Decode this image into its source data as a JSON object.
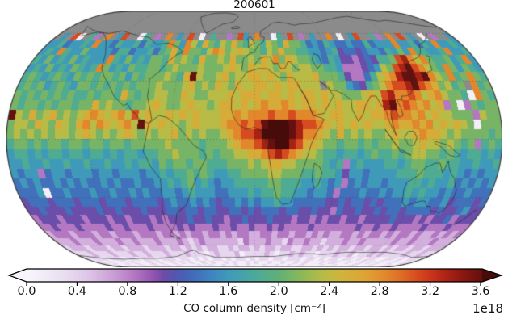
{
  "chart_data": {
    "type": "heatmap",
    "title": "200601",
    "projection": "eckert4",
    "colorbar": {
      "label": "CO column density [cm⁻²]",
      "scale_label": "1e18",
      "tick_labels": [
        "0.0",
        "0.4",
        "0.8",
        "1.2",
        "1.6",
        "2.0",
        "2.4",
        "2.8",
        "3.2",
        "3.6"
      ],
      "tick_values": [
        0.0,
        0.4,
        0.8,
        1.2,
        1.6,
        2.0,
        2.4,
        2.8,
        3.2,
        3.6
      ],
      "min": 0.0,
      "max": 3.6,
      "extend": "both"
    },
    "colormap": [
      {
        "v": 0.0,
        "c": "#f8f6fc"
      },
      {
        "v": 0.3,
        "c": "#e9def1"
      },
      {
        "v": 0.5,
        "c": "#ddc3e6"
      },
      {
        "v": 0.7,
        "c": "#c89bd3"
      },
      {
        "v": 0.85,
        "c": "#b478c2"
      },
      {
        "v": 1.0,
        "c": "#9355b1"
      },
      {
        "v": 1.08,
        "c": "#714ba9"
      },
      {
        "v": 1.18,
        "c": "#5356b0"
      },
      {
        "v": 1.3,
        "c": "#4269b8"
      },
      {
        "v": 1.45,
        "c": "#3f82c0"
      },
      {
        "v": 1.6,
        "c": "#3f9aba"
      },
      {
        "v": 1.8,
        "c": "#4aa99b"
      },
      {
        "v": 2.0,
        "c": "#60b076"
      },
      {
        "v": 2.2,
        "c": "#90b955"
      },
      {
        "v": 2.35,
        "c": "#b8bb46"
      },
      {
        "v": 2.5,
        "c": "#d0b43c"
      },
      {
        "v": 2.7,
        "c": "#dfa133"
      },
      {
        "v": 2.85,
        "c": "#e2872b"
      },
      {
        "v": 3.0,
        "c": "#dd6423"
      },
      {
        "v": 3.15,
        "c": "#d23e1d"
      },
      {
        "v": 3.3,
        "c": "#b42517"
      },
      {
        "v": 3.45,
        "c": "#8c1710"
      },
      {
        "v": 3.6,
        "c": "#651110"
      },
      {
        "v": 3.75,
        "c": "#470c09"
      }
    ],
    "no_data_color": "#8b8b8b",
    "grid": {
      "lat_start": 90,
      "lat_step": -5,
      "lon_start": -180,
      "lon_step": 5,
      "encoding": "each char: index in '0123456789abcdef' times 0.25 = CO column density in 1e18 cm^-2; '.' = no data (gray)",
      "rows": [
        "........................................................................",
        "........................................................................",
        "........................................................................",
        "........................................................................",
        "........................................................................",
        "........................................................................",
        ".6.c0.73.b.6c..07.3.b.6.c.0.7..3.c6.b..07.c.3.6..b.0.6c..73.b.c.6.0.3..6",
        "66756676b665766757667b86b97a8798a87987987a887565765565575666b667576b6676",
        "676b766866665775667578a7b8879ba89a988798a887766567455456657686b77667b667",
        "768676867666b768676887a8987a8898a8898a9b8a98876576443454778cdb9b877867b6",
        "67686768767b86768778878988898889a98a9a98a98998877633345698cdecb987b86876",
        "7876787687878878687888987ae9889a899aa9a98a999a8887433579abdeedeb98b78b87",
        "78786787688787878788898889a898a98a99aa9a9aa999.988654789bccdecba8978.b78",
        "8787878787787887a87889988a988999a9aaa9aa9a9aa9a998889a9cdbbcb9ab98870b87",
        "878878788788a89887889a9889a9989aa9a9abaaba9aa9a9a99aa9adebcbab9a38038788",
        "e98a89a8989aba9ab9c9a99a9a9a999aababbbcbbcbbba9aa99a9aabcbbab9a998883988",
        "8998a98a98ab9ba9ab9ea9a9989a999abbcbcefffedccba9a9a9a99abaabab9a9a980888",
        "89898989989a98989a989899a8989889abccdffffedbba98a8989889a99abaa989888878",
        "788787887887887887888889888878889abbcdeffdcaa988788787889889a99898783787",
        "67767677677677676776778898887878899aabcdcba99877677678778789988787677676",
        "66766766766766766767768788788777888989aa99888876736766677678877877667667",
        "65663566566656656665667677878766778888998887787764665666677787776765 656",
        "56565565656556565565566767867656677777887776676563565665666776766 7565656",
        "55560556555655655656556656766655666767787766566535556556566767665 6556555",
        "455545554555455545555456556565455656566766555554454554545556566556455545",
        "445444544445445444544455455455445545455545544544354454454554555545445644",
        "344434443444344344434344454454434454445444344343443443444454443434 4534",
        "334333433334334333433334343334334334334343333433333334334334333343334333",
        "233323332332333233323323233233232332233233233232322332323323233232232323",
        "222322232223223222322232123222222132223221322322122232232222232232223222",
        "122212221221222122212212121221121221212212211221212122122122121221 2212",
        "111211121112112111211121110121112011112101121211011121120112121111211 2111",
        "011101110110111011101101010110101101011011011101101011011010110011 0101101",
        "010100101000101001010100101001010010100100100101000101100100101010010010",
        "001001001001001001000010010010010010001001001001000010010000100010001001",
        "000100010001000100010001000100010001000100010001000100010001000100010001"
      ]
    },
    "graticule": {
      "lats": [
        -60,
        -30,
        0,
        30,
        60
      ],
      "lons": [
        -120,
        -60,
        0,
        60,
        120
      ],
      "style": "dotted"
    }
  }
}
